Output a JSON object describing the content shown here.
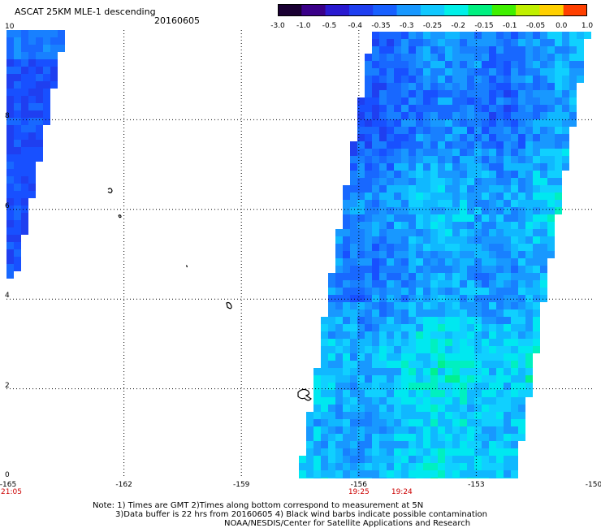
{
  "header": {
    "title": "ASCAT 25KM MLE-1 descending",
    "date": "20160605"
  },
  "colorbar": {
    "ticks": [
      "-3.0",
      "-1.0",
      "-0.5",
      "-0.4",
      "-0.35",
      "-0.3",
      "-0.25",
      "-0.2",
      "-0.15",
      "-0.1",
      "-0.05",
      "0.0",
      "1.0"
    ],
    "colors": [
      "#1a0033",
      "#3a0088",
      "#2a1ad0",
      "#1f3ff0",
      "#1860ff",
      "#1898ff",
      "#10c8ff",
      "#00f0e8",
      "#00f080",
      "#40f000",
      "#c0f000",
      "#ffd000",
      "#ff4000"
    ]
  },
  "axes": {
    "x_ticks": [
      "-165",
      "-162",
      "-159",
      "-156",
      "-153",
      "-150"
    ],
    "y_ticks": [
      "0",
      "2",
      "4",
      "6",
      "8",
      "10"
    ],
    "time_labels": [
      {
        "text": "21:05",
        "lon": -165
      },
      {
        "text": "19:25",
        "lon": -156
      },
      {
        "text": "19:24",
        "lon": -154.9
      }
    ]
  },
  "map_extent": {
    "lon_min": -165,
    "lon_max": -150,
    "lat_min": 0,
    "lat_max": 10
  },
  "notes": {
    "line1": "Note: 1) Times are GMT 2)Times along bottom correspond to measurement at 5N",
    "line2": "3)Data buffer is 22 hrs from 20160605 4) Black wind barbs indicate possible contamination",
    "line3": "NOAA/NESDIS/Center for Satellite Applications and Research"
  }
}
